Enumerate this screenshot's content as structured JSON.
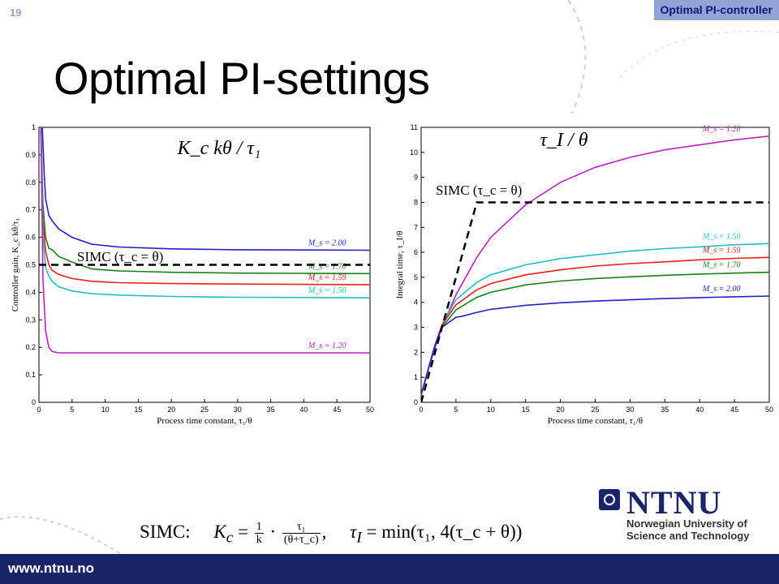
{
  "slide_number": "19",
  "topic_badge": "Optimal PI-controller",
  "title": "Optimal PI-settings",
  "footer_url": "www.ntnu.no",
  "logo": {
    "name": "NTNU",
    "subtitle_line1": "Norwegian University of",
    "subtitle_line2": "Science and Technology"
  },
  "formula": {
    "lead": "SIMC:",
    "kc_lhs": "K",
    "kc_sub": "c",
    "eq1": " = ",
    "k_frac_num": "1",
    "k_frac_den": "k",
    "dot": " · ",
    "tau_frac_num": "τ₁",
    "tau_frac_den": "(θ+τ_c)",
    "sep": ",",
    "ti_lhs": "τ",
    "ti_sub": "I",
    "eq2": " = min(τ₁, 4(τ_c + θ))"
  },
  "colors": {
    "footer": "#1a2468",
    "badge": "#93a3d6",
    "blue": "#1f1fcc",
    "green": "#1a7f1a",
    "red": "#ee1c1c",
    "cyan": "#21c0c0",
    "magenta": "#bb22bb"
  },
  "chart_data": [
    {
      "type": "line",
      "title": "K_c kθ / τ₁",
      "xlabel": "Process time constant, τ₁/θ",
      "ylabel": "Controller gain, K_c kθ/τ₁",
      "xlim": [
        0,
        50
      ],
      "ylim": [
        0,
        1
      ],
      "xticks": [
        "0",
        "5",
        "10",
        "15",
        "20",
        "25",
        "30",
        "35",
        "40",
        "45",
        "50"
      ],
      "yticks": [
        "0",
        "0.1",
        "0.2",
        "0.3",
        "0.4",
        "0.5",
        "0.6",
        "0.7",
        "0.8",
        "0.9",
        "1"
      ],
      "grid": false,
      "annotation": "SIMC (τ_c = θ)",
      "series": [
        {
          "name": "M_s = 2.00",
          "color": "#1f1fcc",
          "x": [
            0.5,
            0.8,
            1,
            1.5,
            2,
            3,
            5,
            8,
            12,
            20,
            30,
            40,
            50
          ],
          "y": [
            1.0,
            0.83,
            0.74,
            0.68,
            0.66,
            0.63,
            0.6,
            0.575,
            0.565,
            0.558,
            0.555,
            0.554,
            0.553
          ]
        },
        {
          "name": "M_s = 1.70",
          "color": "#1a7f1a",
          "x": [
            0.3,
            0.6,
            1,
            1.5,
            2,
            3,
            5,
            8,
            12,
            20,
            30,
            40,
            50
          ],
          "y": [
            1.0,
            0.72,
            0.6,
            0.56,
            0.555,
            0.53,
            0.51,
            0.485,
            0.478,
            0.473,
            0.47,
            0.469,
            0.468
          ]
        },
        {
          "name": "M_s = 1.59",
          "color": "#ee1c1c",
          "x": [
            0.3,
            0.6,
            1,
            1.5,
            2,
            3,
            5,
            8,
            12,
            20,
            30,
            40,
            50
          ],
          "y": [
            1.0,
            0.66,
            0.55,
            0.5,
            0.48,
            0.465,
            0.45,
            0.44,
            0.435,
            0.432,
            0.43,
            0.429,
            0.428
          ]
        },
        {
          "name": "M_s = 1.50",
          "color": "#21c0c0",
          "x": [
            0.3,
            0.6,
            1,
            1.5,
            2,
            3,
            5,
            8,
            12,
            20,
            30,
            40,
            50
          ],
          "y": [
            1.0,
            0.6,
            0.49,
            0.46,
            0.44,
            0.42,
            0.405,
            0.395,
            0.39,
            0.385,
            0.382,
            0.381,
            0.38
          ]
        },
        {
          "name": "M_s = 1.20",
          "color": "#bb22bb",
          "x": [
            0.3,
            0.6,
            1,
            1.5,
            2,
            3,
            5,
            10,
            20,
            30,
            40,
            50
          ],
          "y": [
            1.0,
            0.45,
            0.26,
            0.2,
            0.185,
            0.18,
            0.18,
            0.18,
            0.18,
            0.18,
            0.18,
            0.18
          ]
        },
        {
          "name": "SIMC",
          "color": "#000000",
          "dashed": true,
          "x": [
            0,
            50
          ],
          "y": [
            0.5,
            0.5
          ]
        }
      ]
    },
    {
      "type": "line",
      "title": "τ_I / θ",
      "xlabel": "Process time constant, τ₁/θ",
      "ylabel": "Integral time, τ_I/θ",
      "xlim": [
        0,
        50
      ],
      "ylim": [
        0,
        11
      ],
      "xticks": [
        "0",
        "5",
        "10",
        "15",
        "20",
        "25",
        "30",
        "35",
        "40",
        "45",
        "50"
      ],
      "yticks": [
        "0",
        "1",
        "2",
        "3",
        "4",
        "5",
        "6",
        "7",
        "8",
        "9",
        "10",
        "11"
      ],
      "grid": false,
      "annotation": "SIMC (τ_c = θ)",
      "series": [
        {
          "name": "M_s = 1.20",
          "color": "#bb22bb",
          "x": [
            0,
            1,
            2,
            3,
            5,
            8,
            10,
            15,
            20,
            25,
            30,
            35,
            40,
            45,
            50
          ],
          "y": [
            0.3,
            1.3,
            2.2,
            3.0,
            4.3,
            5.8,
            6.6,
            7.9,
            8.8,
            9.4,
            9.8,
            10.1,
            10.3,
            10.5,
            10.65
          ]
        },
        {
          "name": "M_s = 1.50",
          "color": "#21c0c0",
          "x": [
            0,
            1,
            2,
            3,
            5,
            8,
            10,
            15,
            20,
            25,
            30,
            35,
            40,
            45,
            50
          ],
          "y": [
            0.3,
            1.3,
            2.3,
            3.1,
            4.1,
            4.8,
            5.1,
            5.5,
            5.75,
            5.9,
            6.05,
            6.15,
            6.22,
            6.3,
            6.35
          ]
        },
        {
          "name": "M_s = 1.59",
          "color": "#ee1c1c",
          "x": [
            0,
            1,
            2,
            3,
            5,
            8,
            10,
            15,
            20,
            25,
            30,
            35,
            40,
            45,
            50
          ],
          "y": [
            0.3,
            1.3,
            2.3,
            3.1,
            3.9,
            4.5,
            4.75,
            5.1,
            5.3,
            5.45,
            5.55,
            5.62,
            5.7,
            5.76,
            5.8
          ]
        },
        {
          "name": "M_s = 1.70",
          "color": "#1a7f1a",
          "x": [
            0,
            1,
            2,
            3,
            5,
            8,
            10,
            15,
            20,
            25,
            30,
            35,
            40,
            45,
            50
          ],
          "y": [
            0.3,
            1.3,
            2.3,
            3.0,
            3.7,
            4.2,
            4.4,
            4.7,
            4.85,
            4.95,
            5.02,
            5.08,
            5.13,
            5.17,
            5.2
          ]
        },
        {
          "name": "M_s = 2.00",
          "color": "#1f1fcc",
          "x": [
            0,
            1,
            2,
            3,
            5,
            6,
            8,
            10,
            15,
            20,
            25,
            30,
            35,
            40,
            45,
            50
          ],
          "y": [
            0.3,
            1.3,
            2.3,
            3.0,
            3.4,
            3.45,
            3.6,
            3.72,
            3.88,
            3.98,
            4.05,
            4.1,
            4.15,
            4.19,
            4.22,
            4.25
          ]
        },
        {
          "name": "SIMC",
          "color": "#000000",
          "dashed": true,
          "x": [
            0,
            8,
            50
          ],
          "y": [
            0,
            8,
            8
          ]
        }
      ]
    }
  ]
}
